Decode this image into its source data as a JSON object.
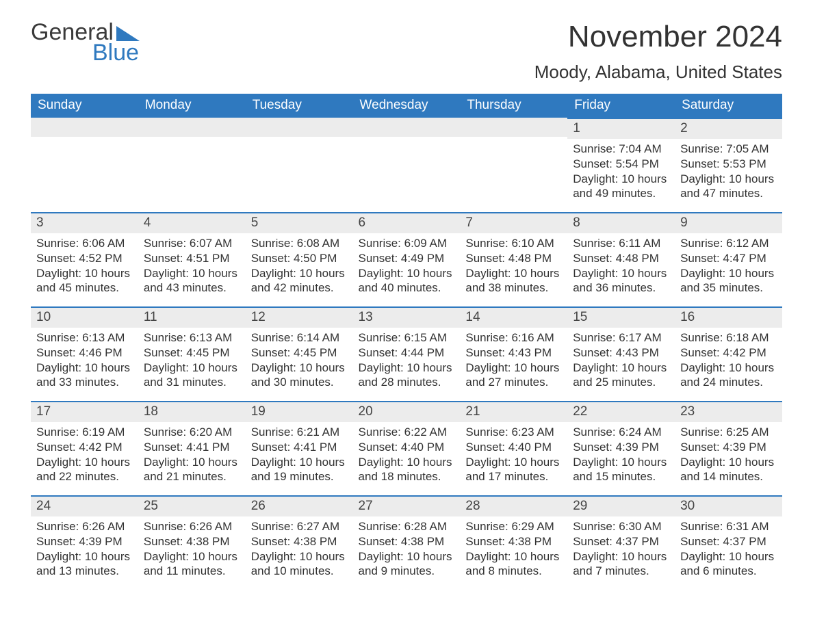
{
  "logo": {
    "line1": "General",
    "line2": "Blue",
    "triangle_color": "#2f79bf"
  },
  "header": {
    "month_title": "November 2024",
    "location": "Moody, Alabama, United States"
  },
  "styling": {
    "header_bg": "#2f79bf",
    "header_text": "#ffffff",
    "daynum_bg": "#ececec",
    "daynum_border_top": "#2f79bf",
    "body_bg": "#ffffff",
    "text_color": "#333333",
    "title_fontsize": 44,
    "location_fontsize": 26,
    "weekday_fontsize": 19,
    "daynum_fontsize": 19,
    "body_fontsize": 17,
    "columns": 7,
    "rows": 5
  },
  "weekdays": [
    "Sunday",
    "Monday",
    "Tuesday",
    "Wednesday",
    "Thursday",
    "Friday",
    "Saturday"
  ],
  "weeks": [
    [
      null,
      null,
      null,
      null,
      null,
      {
        "n": "1",
        "sunrise": "Sunrise: 7:04 AM",
        "sunset": "Sunset: 5:54 PM",
        "day1": "Daylight: 10 hours",
        "day2": "and 49 minutes."
      },
      {
        "n": "2",
        "sunrise": "Sunrise: 7:05 AM",
        "sunset": "Sunset: 5:53 PM",
        "day1": "Daylight: 10 hours",
        "day2": "and 47 minutes."
      }
    ],
    [
      {
        "n": "3",
        "sunrise": "Sunrise: 6:06 AM",
        "sunset": "Sunset: 4:52 PM",
        "day1": "Daylight: 10 hours",
        "day2": "and 45 minutes."
      },
      {
        "n": "4",
        "sunrise": "Sunrise: 6:07 AM",
        "sunset": "Sunset: 4:51 PM",
        "day1": "Daylight: 10 hours",
        "day2": "and 43 minutes."
      },
      {
        "n": "5",
        "sunrise": "Sunrise: 6:08 AM",
        "sunset": "Sunset: 4:50 PM",
        "day1": "Daylight: 10 hours",
        "day2": "and 42 minutes."
      },
      {
        "n": "6",
        "sunrise": "Sunrise: 6:09 AM",
        "sunset": "Sunset: 4:49 PM",
        "day1": "Daylight: 10 hours",
        "day2": "and 40 minutes."
      },
      {
        "n": "7",
        "sunrise": "Sunrise: 6:10 AM",
        "sunset": "Sunset: 4:48 PM",
        "day1": "Daylight: 10 hours",
        "day2": "and 38 minutes."
      },
      {
        "n": "8",
        "sunrise": "Sunrise: 6:11 AM",
        "sunset": "Sunset: 4:48 PM",
        "day1": "Daylight: 10 hours",
        "day2": "and 36 minutes."
      },
      {
        "n": "9",
        "sunrise": "Sunrise: 6:12 AM",
        "sunset": "Sunset: 4:47 PM",
        "day1": "Daylight: 10 hours",
        "day2": "and 35 minutes."
      }
    ],
    [
      {
        "n": "10",
        "sunrise": "Sunrise: 6:13 AM",
        "sunset": "Sunset: 4:46 PM",
        "day1": "Daylight: 10 hours",
        "day2": "and 33 minutes."
      },
      {
        "n": "11",
        "sunrise": "Sunrise: 6:13 AM",
        "sunset": "Sunset: 4:45 PM",
        "day1": "Daylight: 10 hours",
        "day2": "and 31 minutes."
      },
      {
        "n": "12",
        "sunrise": "Sunrise: 6:14 AM",
        "sunset": "Sunset: 4:45 PM",
        "day1": "Daylight: 10 hours",
        "day2": "and 30 minutes."
      },
      {
        "n": "13",
        "sunrise": "Sunrise: 6:15 AM",
        "sunset": "Sunset: 4:44 PM",
        "day1": "Daylight: 10 hours",
        "day2": "and 28 minutes."
      },
      {
        "n": "14",
        "sunrise": "Sunrise: 6:16 AM",
        "sunset": "Sunset: 4:43 PM",
        "day1": "Daylight: 10 hours",
        "day2": "and 27 minutes."
      },
      {
        "n": "15",
        "sunrise": "Sunrise: 6:17 AM",
        "sunset": "Sunset: 4:43 PM",
        "day1": "Daylight: 10 hours",
        "day2": "and 25 minutes."
      },
      {
        "n": "16",
        "sunrise": "Sunrise: 6:18 AM",
        "sunset": "Sunset: 4:42 PM",
        "day1": "Daylight: 10 hours",
        "day2": "and 24 minutes."
      }
    ],
    [
      {
        "n": "17",
        "sunrise": "Sunrise: 6:19 AM",
        "sunset": "Sunset: 4:42 PM",
        "day1": "Daylight: 10 hours",
        "day2": "and 22 minutes."
      },
      {
        "n": "18",
        "sunrise": "Sunrise: 6:20 AM",
        "sunset": "Sunset: 4:41 PM",
        "day1": "Daylight: 10 hours",
        "day2": "and 21 minutes."
      },
      {
        "n": "19",
        "sunrise": "Sunrise: 6:21 AM",
        "sunset": "Sunset: 4:41 PM",
        "day1": "Daylight: 10 hours",
        "day2": "and 19 minutes."
      },
      {
        "n": "20",
        "sunrise": "Sunrise: 6:22 AM",
        "sunset": "Sunset: 4:40 PM",
        "day1": "Daylight: 10 hours",
        "day2": "and 18 minutes."
      },
      {
        "n": "21",
        "sunrise": "Sunrise: 6:23 AM",
        "sunset": "Sunset: 4:40 PM",
        "day1": "Daylight: 10 hours",
        "day2": "and 17 minutes."
      },
      {
        "n": "22",
        "sunrise": "Sunrise: 6:24 AM",
        "sunset": "Sunset: 4:39 PM",
        "day1": "Daylight: 10 hours",
        "day2": "and 15 minutes."
      },
      {
        "n": "23",
        "sunrise": "Sunrise: 6:25 AM",
        "sunset": "Sunset: 4:39 PM",
        "day1": "Daylight: 10 hours",
        "day2": "and 14 minutes."
      }
    ],
    [
      {
        "n": "24",
        "sunrise": "Sunrise: 6:26 AM",
        "sunset": "Sunset: 4:39 PM",
        "day1": "Daylight: 10 hours",
        "day2": "and 13 minutes."
      },
      {
        "n": "25",
        "sunrise": "Sunrise: 6:26 AM",
        "sunset": "Sunset: 4:38 PM",
        "day1": "Daylight: 10 hours",
        "day2": "and 11 minutes."
      },
      {
        "n": "26",
        "sunrise": "Sunrise: 6:27 AM",
        "sunset": "Sunset: 4:38 PM",
        "day1": "Daylight: 10 hours",
        "day2": "and 10 minutes."
      },
      {
        "n": "27",
        "sunrise": "Sunrise: 6:28 AM",
        "sunset": "Sunset: 4:38 PM",
        "day1": "Daylight: 10 hours",
        "day2": "and 9 minutes."
      },
      {
        "n": "28",
        "sunrise": "Sunrise: 6:29 AM",
        "sunset": "Sunset: 4:38 PM",
        "day1": "Daylight: 10 hours",
        "day2": "and 8 minutes."
      },
      {
        "n": "29",
        "sunrise": "Sunrise: 6:30 AM",
        "sunset": "Sunset: 4:37 PM",
        "day1": "Daylight: 10 hours",
        "day2": "and 7 minutes."
      },
      {
        "n": "30",
        "sunrise": "Sunrise: 6:31 AM",
        "sunset": "Sunset: 4:37 PM",
        "day1": "Daylight: 10 hours",
        "day2": "and 6 minutes."
      }
    ]
  ]
}
